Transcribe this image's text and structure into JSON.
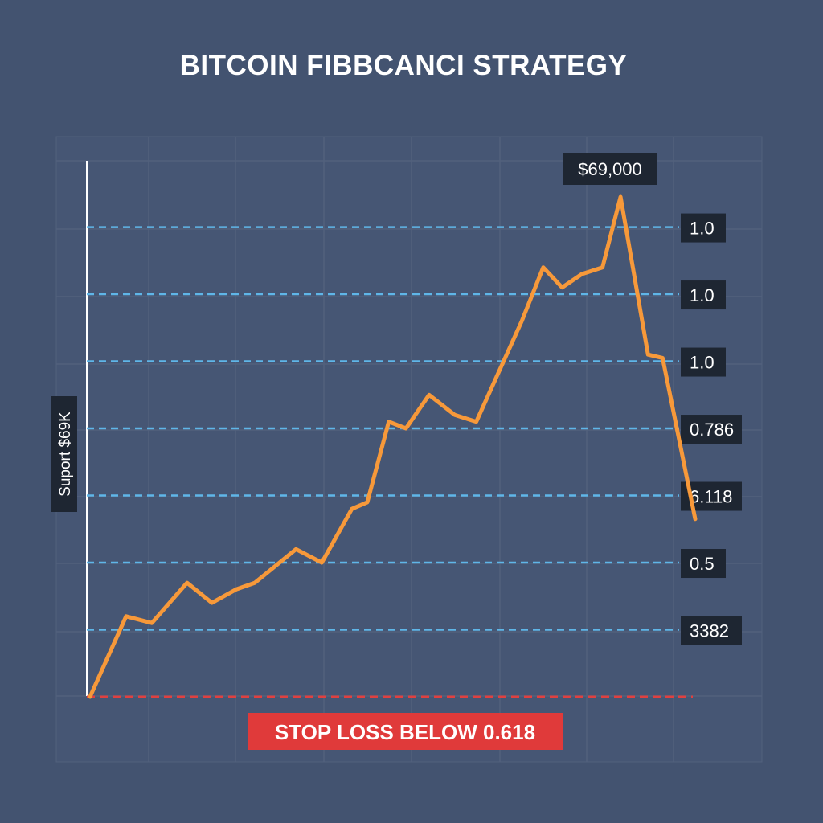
{
  "chart_data": {
    "type": "line",
    "title": "BITCOIN FIBBCANCI STRATEGY",
    "y_axis_label": "Suport $69K",
    "peak_annotation": "$69,000",
    "fib_levels": [
      {
        "label": "1.0",
        "value": 1.0
      },
      {
        "label": "1.0",
        "value": 0.9
      },
      {
        "label": "1.0",
        "value": 0.8
      },
      {
        "label": "0.786",
        "value": 0.7
      },
      {
        "label": "6.118",
        "value": 0.6
      },
      {
        "label": "0.5",
        "value": 0.5
      },
      {
        "label": "3382",
        "value": 0.4
      }
    ],
    "stop_loss": {
      "label": "STOP LOSS BELOW 0.618",
      "value": 0.3
    },
    "series": [
      {
        "color": "#f7993a",
        "points": [
          [
            0,
            0.3
          ],
          [
            0.42,
            0.42
          ],
          [
            0.72,
            0.41
          ],
          [
            1.13,
            0.47
          ],
          [
            1.42,
            0.44
          ],
          [
            1.7,
            0.46
          ],
          [
            1.92,
            0.47
          ],
          [
            2.4,
            0.52
          ],
          [
            2.7,
            0.5
          ],
          [
            3.05,
            0.58
          ],
          [
            3.23,
            0.59
          ],
          [
            3.48,
            0.71
          ],
          [
            3.68,
            0.7
          ],
          [
            3.95,
            0.75
          ],
          [
            4.25,
            0.72
          ],
          [
            4.5,
            0.71
          ],
          [
            5.03,
            0.86
          ],
          [
            5.28,
            0.94
          ],
          [
            5.5,
            0.91
          ],
          [
            5.73,
            0.93
          ],
          [
            5.97,
            0.94
          ],
          [
            6.18,
            1.045
          ],
          [
            6.5,
            0.81
          ],
          [
            6.67,
            0.805
          ],
          [
            7.05,
            0.565
          ]
        ]
      }
    ],
    "xlim": [
      0,
      7.05
    ],
    "ylim": [
      0.3,
      1.045
    ],
    "grid": true,
    "colors": {
      "background": "#435370",
      "line": "#f7993a",
      "fib_line": "#5fb6e8",
      "stop_loss_line": "#e04040",
      "stop_loss_bg": "#e03a3a",
      "label_bg": "#1e2632",
      "grid": "#52617d"
    }
  }
}
